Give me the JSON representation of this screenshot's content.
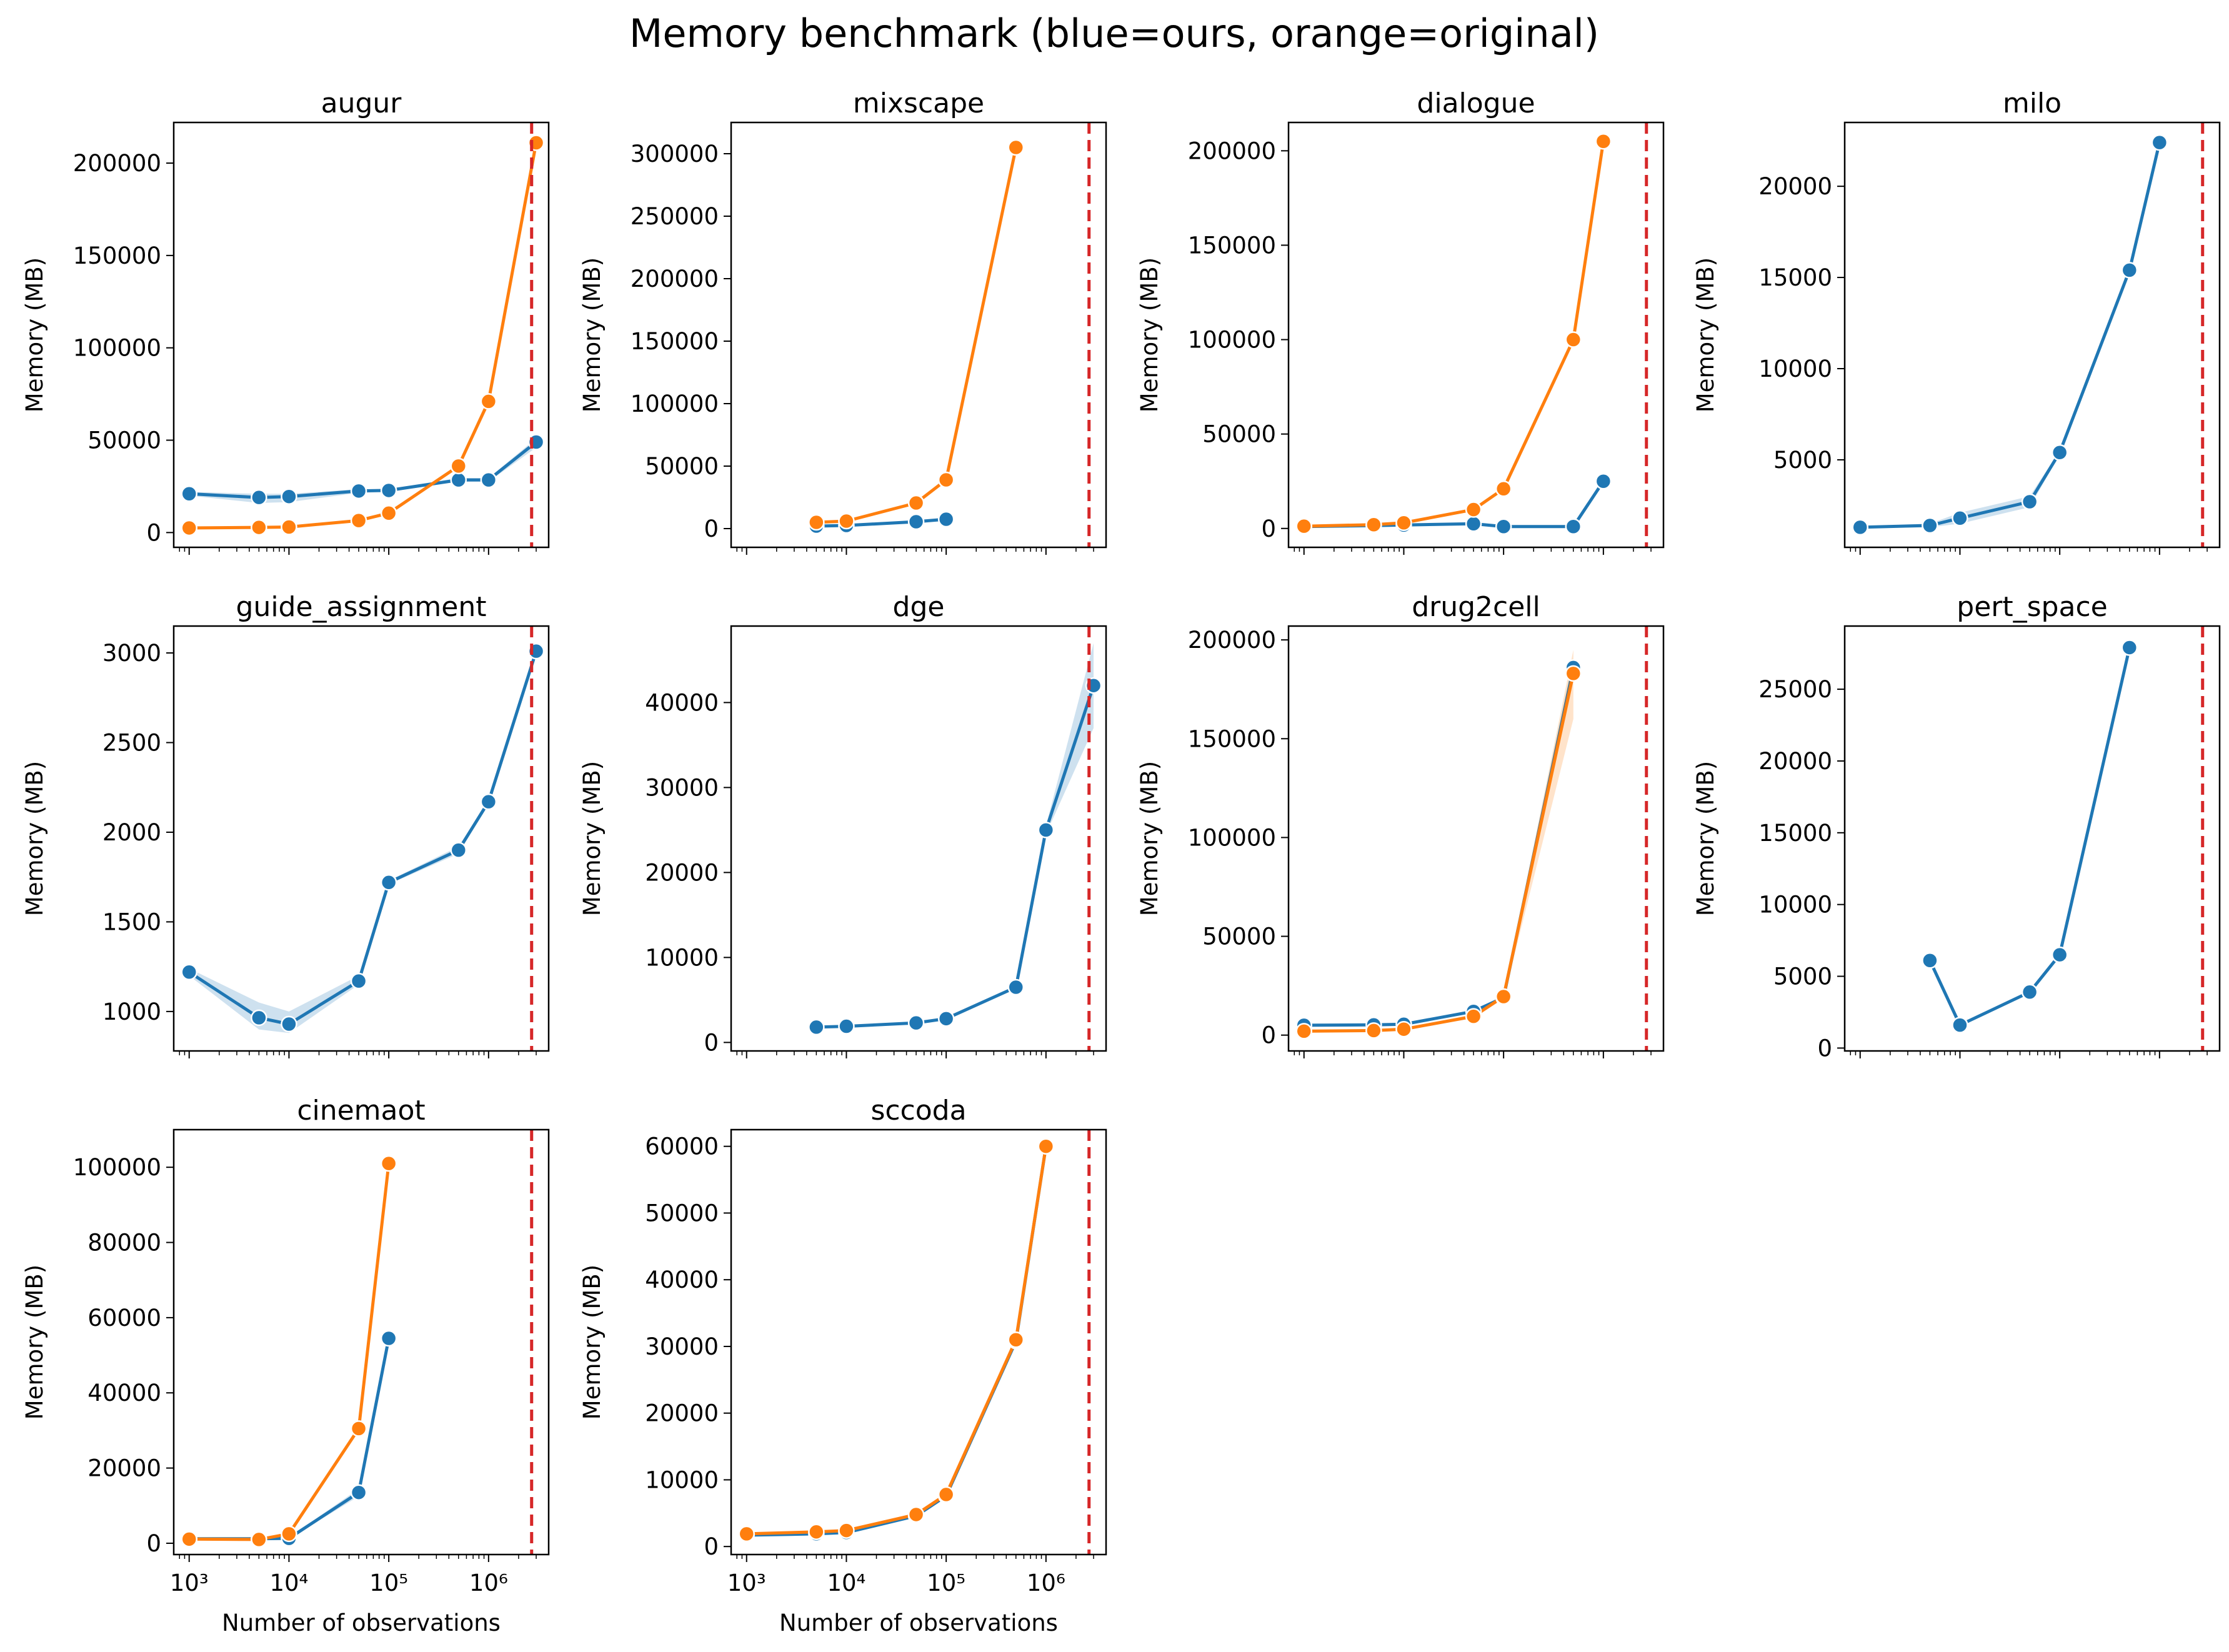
{
  "title": "Memory benchmark (blue=ours, orange=original)",
  "colors": {
    "ours": "#1f77b4",
    "original": "#ff7f0e",
    "cutoff": "#d62728"
  },
  "cutoff_x": 2700000,
  "xlabel": "Number of observations",
  "ylabel": "Memory (MB)",
  "chart_data": [
    {
      "type": "line",
      "title": "augur",
      "xlabel": "",
      "ylabel": "Memory (MB)",
      "xscale": "log",
      "xlim": [
        700,
        4000000
      ],
      "ylim": [
        -8000,
        222000
      ],
      "yticks": [
        0,
        50000,
        100000,
        150000,
        200000
      ],
      "xticks": [
        1000,
        10000,
        100000,
        1000000
      ],
      "series": [
        {
          "key": "ours",
          "x": [
            1000,
            5000,
            10000,
            50000,
            100000,
            500000,
            1000000,
            3000000
          ],
          "y": [
            21000,
            19000,
            19500,
            22500,
            22800,
            28500,
            28500,
            49000
          ],
          "band_low": [
            20000,
            16000,
            16500,
            21500,
            22000,
            27500,
            27500,
            46000
          ],
          "band_high": [
            22000,
            21000,
            21000,
            23500,
            23600,
            29500,
            29500,
            51000
          ]
        },
        {
          "key": "original",
          "x": [
            1000,
            5000,
            10000,
            50000,
            100000,
            500000,
            1000000,
            3000000
          ],
          "y": [
            2500,
            2800,
            3000,
            6500,
            10500,
            36000,
            71000,
            211000
          ]
        }
      ]
    },
    {
      "type": "line",
      "title": "mixscape",
      "xlabel": "",
      "ylabel": "Memory (MB)",
      "xscale": "log",
      "xlim": [
        700,
        4000000
      ],
      "ylim": [
        -15000,
        325000
      ],
      "yticks": [
        0,
        50000,
        100000,
        150000,
        200000,
        250000,
        300000
      ],
      "xticks": [
        1000,
        10000,
        100000,
        1000000
      ],
      "series": [
        {
          "key": "ours",
          "x": [
            5000,
            10000,
            50000,
            100000
          ],
          "y": [
            2000,
            2500,
            5500,
            7500
          ]
        },
        {
          "key": "original",
          "x": [
            5000,
            10000,
            50000,
            100000,
            500000
          ],
          "y": [
            5000,
            6000,
            20500,
            39000,
            305000
          ]
        }
      ]
    },
    {
      "type": "line",
      "title": "dialogue",
      "xlabel": "",
      "ylabel": "Memory (MB)",
      "xscale": "log",
      "xlim": [
        700,
        4000000
      ],
      "ylim": [
        -10000,
        215000
      ],
      "yticks": [
        0,
        50000,
        100000,
        150000,
        200000
      ],
      "xticks": [
        1000,
        10000,
        100000,
        1000000
      ],
      "series": [
        {
          "key": "ours",
          "x": [
            1000,
            5000,
            10000,
            50000,
            100000,
            500000,
            1000000
          ],
          "y": [
            1000,
            1500,
            1800,
            2500,
            1000,
            1000,
            25000
          ]
        },
        {
          "key": "original",
          "x": [
            1000,
            5000,
            10000,
            50000,
            100000,
            500000,
            1000000
          ],
          "y": [
            1200,
            2000,
            3000,
            10000,
            21000,
            100000,
            205000
          ]
        }
      ]
    },
    {
      "type": "line",
      "title": "milo",
      "xlabel": "",
      "ylabel": "Memory (MB)",
      "xscale": "log",
      "xlim": [
        700,
        4000000
      ],
      "ylim": [
        200,
        23500
      ],
      "yticks": [
        5000,
        10000,
        15000,
        20000
      ],
      "xticks": [
        1000,
        10000,
        100000,
        1000000
      ],
      "series": [
        {
          "key": "ours",
          "x": [
            1000,
            5000,
            10000,
            50000,
            100000,
            500000,
            1000000
          ],
          "y": [
            1300,
            1400,
            1800,
            2700,
            5400,
            15400,
            22400
          ],
          "band_low": [
            1250,
            1300,
            1500,
            2400,
            5300,
            15300,
            22300
          ],
          "band_high": [
            1350,
            1500,
            2100,
            3000,
            5500,
            15500,
            22500
          ]
        }
      ]
    },
    {
      "type": "line",
      "title": "guide_assignment",
      "xlabel": "",
      "ylabel": "Memory (MB)",
      "xscale": "log",
      "xlim": [
        700,
        4000000
      ],
      "ylim": [
        780,
        3150
      ],
      "yticks": [
        1000,
        1500,
        2000,
        2500,
        3000
      ],
      "xticks": [
        1000,
        10000,
        100000,
        1000000
      ],
      "series": [
        {
          "key": "ours",
          "x": [
            1000,
            5000,
            10000,
            50000,
            100000,
            500000,
            1000000,
            3000000
          ],
          "y": [
            1220,
            965,
            930,
            1170,
            1720,
            1900,
            2170,
            3010
          ],
          "band_low": [
            1200,
            900,
            880,
            1150,
            1710,
            1880,
            2160,
            3000
          ],
          "band_high": [
            1240,
            1050,
            1000,
            1200,
            1730,
            1920,
            2180,
            3020
          ]
        }
      ]
    },
    {
      "type": "line",
      "title": "dge",
      "xlabel": "",
      "ylabel": "Memory (MB)",
      "xscale": "log",
      "xlim": [
        700,
        4000000
      ],
      "ylim": [
        -1000,
        49000
      ],
      "yticks": [
        0,
        10000,
        20000,
        30000,
        40000
      ],
      "xticks": [
        1000,
        10000,
        100000,
        1000000
      ],
      "series": [
        {
          "key": "ours",
          "x": [
            5000,
            10000,
            50000,
            100000,
            500000,
            1000000,
            3000000
          ],
          "y": [
            1800,
            1900,
            2300,
            2800,
            6500,
            25000,
            42000
          ],
          "band_low": [
            1700,
            1800,
            2200,
            2700,
            6300,
            24500,
            37000
          ],
          "band_high": [
            1900,
            2000,
            2400,
            2900,
            6700,
            25500,
            47000
          ]
        }
      ]
    },
    {
      "type": "line",
      "title": "drug2cell",
      "xlabel": "",
      "ylabel": "Memory (MB)",
      "xscale": "log",
      "xlim": [
        700,
        4000000
      ],
      "ylim": [
        -8000,
        207000
      ],
      "yticks": [
        0,
        50000,
        100000,
        150000,
        200000
      ],
      "xticks": [
        1000,
        10000,
        100000,
        1000000
      ],
      "series": [
        {
          "key": "ours",
          "x": [
            1000,
            5000,
            10000,
            50000,
            100000,
            500000
          ],
          "y": [
            5000,
            5200,
            5500,
            12000,
            19000,
            186000
          ]
        },
        {
          "key": "original",
          "x": [
            1000,
            5000,
            10000,
            50000,
            100000,
            500000
          ],
          "y": [
            2000,
            2300,
            3000,
            9500,
            19500,
            183000
          ],
          "band_low": [
            1500,
            1800,
            2500,
            8500,
            18500,
            160000
          ],
          "band_high": [
            2500,
            2800,
            3500,
            10500,
            20500,
            195000
          ]
        }
      ]
    },
    {
      "type": "line",
      "title": "pert_space",
      "xlabel": "",
      "ylabel": "Memory (MB)",
      "xscale": "log",
      "xlim": [
        700,
        4000000
      ],
      "ylim": [
        -200,
        29400
      ],
      "yticks": [
        0,
        5000,
        10000,
        15000,
        20000,
        25000
      ],
      "xticks": [
        1000,
        10000,
        100000,
        1000000
      ],
      "series": [
        {
          "key": "ours",
          "x": [
            5000,
            10000,
            50000,
            100000,
            500000
          ],
          "y": [
            6100,
            1600,
            3900,
            6500,
            27900
          ]
        }
      ]
    },
    {
      "type": "line",
      "title": "cinemaot",
      "xlabel": "Number of observations",
      "ylabel": "Memory (MB)",
      "xscale": "log",
      "xlim": [
        700,
        4000000
      ],
      "ylim": [
        -3000,
        110000
      ],
      "yticks": [
        0,
        20000,
        40000,
        60000,
        80000,
        100000
      ],
      "xticks": [
        1000,
        10000,
        100000,
        1000000
      ],
      "series": [
        {
          "key": "ours",
          "x": [
            1000,
            5000,
            10000,
            50000,
            100000
          ],
          "y": [
            1200,
            1200,
            1300,
            13500,
            54500
          ],
          "band_low": [
            1000,
            1000,
            1100,
            12500,
            53500
          ],
          "band_high": [
            1400,
            1400,
            1500,
            14500,
            55500
          ]
        },
        {
          "key": "original",
          "x": [
            1000,
            5000,
            10000,
            50000,
            100000
          ],
          "y": [
            1100,
            1000,
            2500,
            30500,
            101000
          ]
        }
      ]
    },
    {
      "type": "line",
      "title": "sccoda",
      "xlabel": "Number of observations",
      "ylabel": "Memory (MB)",
      "xscale": "log",
      "xlim": [
        700,
        4000000
      ],
      "ylim": [
        -1200,
        62500
      ],
      "yticks": [
        0,
        10000,
        20000,
        30000,
        40000,
        50000,
        60000
      ],
      "xticks": [
        1000,
        10000,
        100000,
        1000000
      ],
      "series": [
        {
          "key": "ours",
          "x": [
            1000,
            5000,
            10000,
            50000,
            100000,
            500000,
            1000000
          ],
          "y": [
            1700,
            1900,
            2100,
            4600,
            7600,
            30800,
            60000
          ]
        },
        {
          "key": "original",
          "x": [
            1000,
            5000,
            10000,
            50000,
            100000,
            500000,
            1000000
          ],
          "y": [
            1900,
            2200,
            2400,
            4800,
            7800,
            31000,
            60000
          ]
        }
      ]
    }
  ]
}
